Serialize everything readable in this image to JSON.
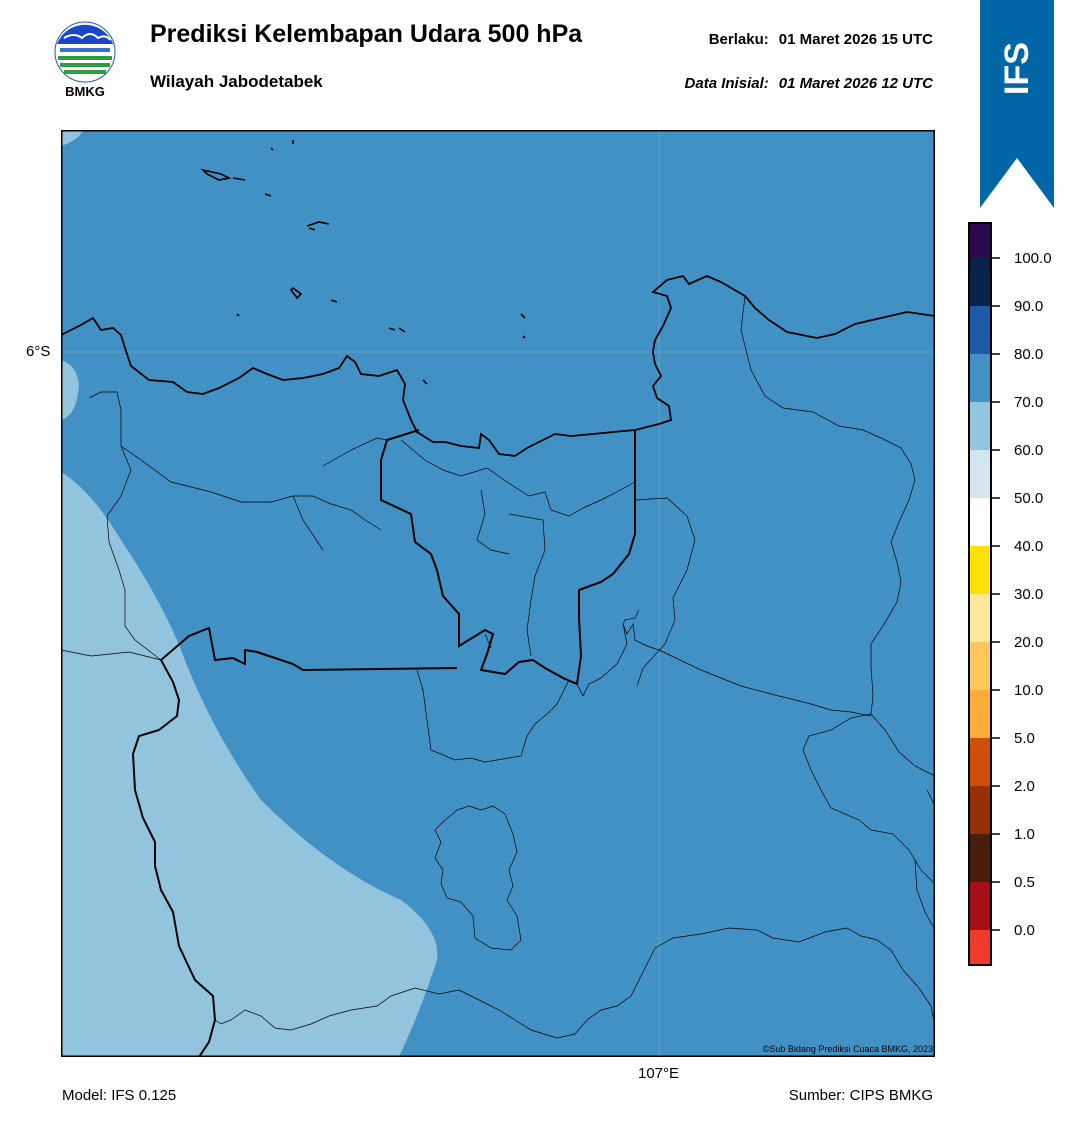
{
  "header": {
    "logo_text": "BMKG",
    "title": "Prediksi Kelembapan Udara 500 hPa",
    "subtitle": "Wilayah Jabodetabek",
    "valid_label": "Berlaku:",
    "valid_value": "01 Maret 2026 15 UTC",
    "init_label": "Data Inisial:",
    "init_value": "01 Maret 2026 12 UTC"
  },
  "badge": {
    "text": "IFS",
    "color": "#0066a6"
  },
  "map": {
    "lat_label": "6°S",
    "lon_label": "107°E",
    "copyright": "©Sub Bidang Prediksi Cuaca BMKG, 2023",
    "field_colors": {
      "dominant": "#4191c5",
      "light": "#92c4de",
      "ocean_edge": "#4191c5"
    }
  },
  "colorbar": {
    "labels": [
      "100.0",
      "90.0",
      "80.0",
      "70.0",
      "60.0",
      "50.0",
      "40.0",
      "30.0",
      "20.0",
      "10.0",
      "5.0",
      "2.0",
      "1.0",
      "0.5",
      "0.0"
    ],
    "colors_top_to_bottom": [
      "#2d0a4f",
      "#08244a",
      "#1f5aa6",
      "#4191c5",
      "#92c4de",
      "#d3e5f0",
      "#ffffff",
      "#ffe100",
      "#ffe79b",
      "#ffc65a",
      "#ffac3b",
      "#fc8c1e",
      "#cf4e08",
      "#943006",
      "#6b2508",
      "#4a1e0c",
      "#a50f15",
      "#ef3b2c"
    ]
  },
  "footer": {
    "model": "Model: IFS 0.125",
    "source": "Sumber: CIPS BMKG"
  }
}
